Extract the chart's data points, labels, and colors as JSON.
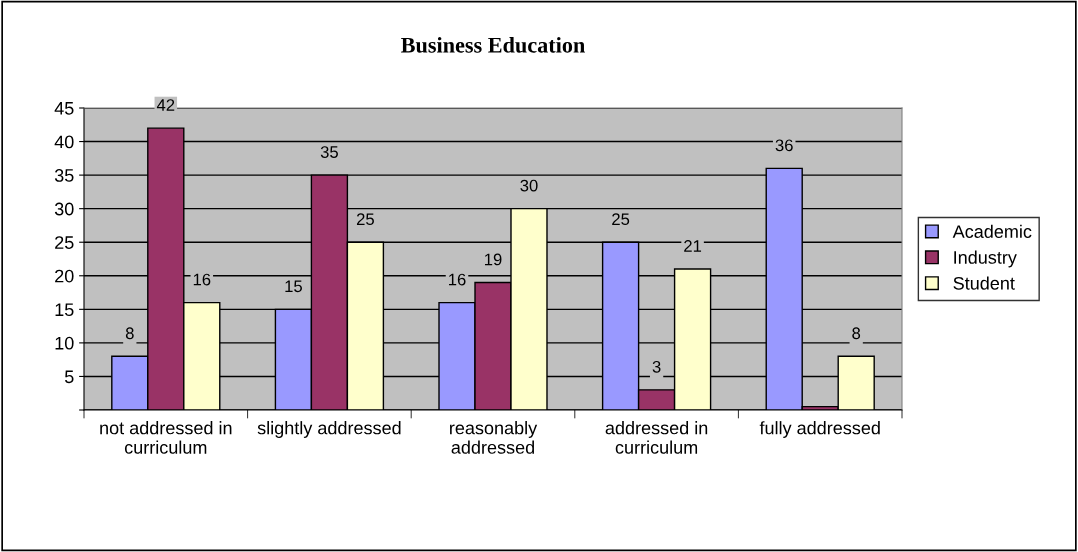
{
  "chart_data": {
    "type": "bar",
    "title": "Business Education",
    "categories": [
      "not addressed in curriculum",
      "slightly addressed",
      "reasonably addressed",
      "addressed in curriculum",
      "fully addressed"
    ],
    "series": [
      {
        "name": "Academic",
        "color": "#9999ff",
        "values": [
          8,
          15,
          16,
          25,
          36
        ],
        "value_labels": [
          "8",
          "15",
          "16",
          "25",
          "36"
        ]
      },
      {
        "name": "Industry",
        "color": "#993366",
        "values": [
          42,
          35,
          19,
          3,
          0.5
        ],
        "value_labels": [
          "42",
          "35",
          "19",
          "3",
          null
        ]
      },
      {
        "name": "Student",
        "color": "#ffffcc",
        "values": [
          16,
          25,
          30,
          21,
          8
        ],
        "value_labels": [
          "16",
          "25",
          "30",
          "21",
          "8"
        ]
      }
    ],
    "ylim": [
      0,
      45
    ],
    "yticks": [
      {
        "value": 0,
        "label": null
      },
      5,
      10,
      15,
      20,
      25,
      30,
      35,
      40,
      45
    ],
    "grid": "y",
    "legend": "right"
  }
}
